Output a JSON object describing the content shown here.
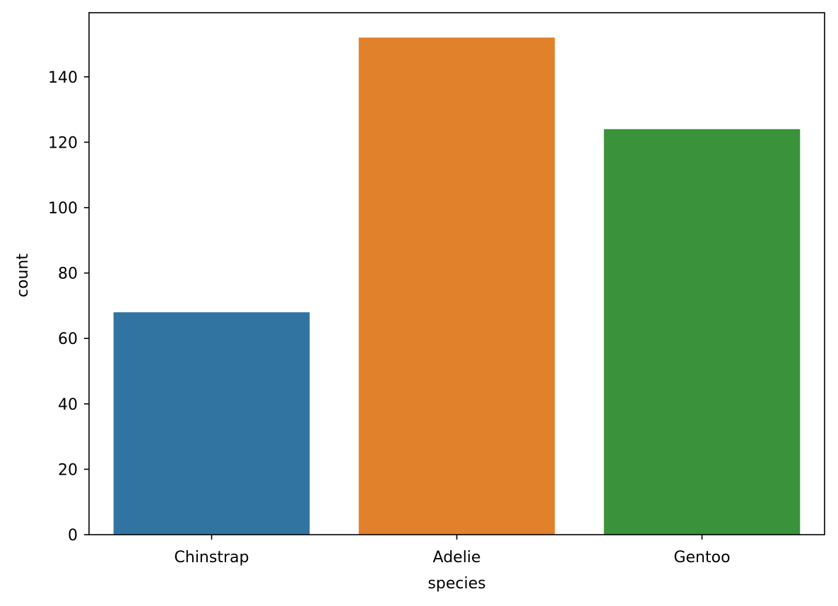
{
  "chart_data": {
    "type": "bar",
    "title": "",
    "xlabel": "species",
    "ylabel": "count",
    "categories": [
      "Chinstrap",
      "Adelie",
      "Gentoo"
    ],
    "values": [
      68,
      152,
      124
    ],
    "colors": [
      "#3274a1",
      "#e1812c",
      "#3a923a"
    ],
    "ylim": [
      0,
      159.6
    ],
    "yticks": [
      0,
      20,
      40,
      60,
      80,
      100,
      120,
      140
    ],
    "grid": false,
    "legend": "none"
  }
}
